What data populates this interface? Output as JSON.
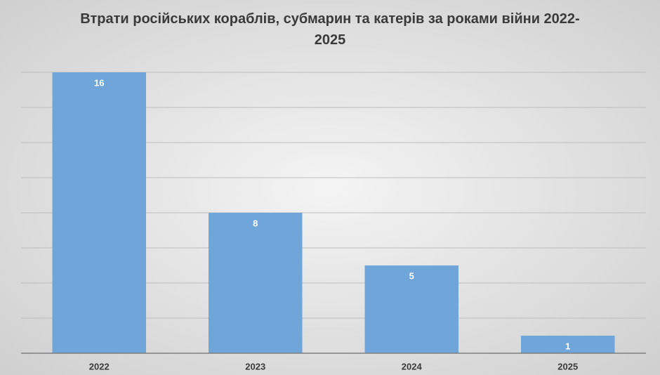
{
  "chart_data": {
    "type": "bar",
    "title": "Втрати російських кораблів, субмарин та катерів за роками війни 2022-2025",
    "categories": [
      "2022",
      "2023",
      "2024",
      "2025"
    ],
    "values": [
      16,
      8,
      5,
      1
    ],
    "color": "#6fa5d8",
    "ylim": [
      0,
      16
    ],
    "yticks": [
      0,
      2,
      4,
      6,
      8,
      10,
      12,
      14,
      16
    ],
    "grid": true
  }
}
